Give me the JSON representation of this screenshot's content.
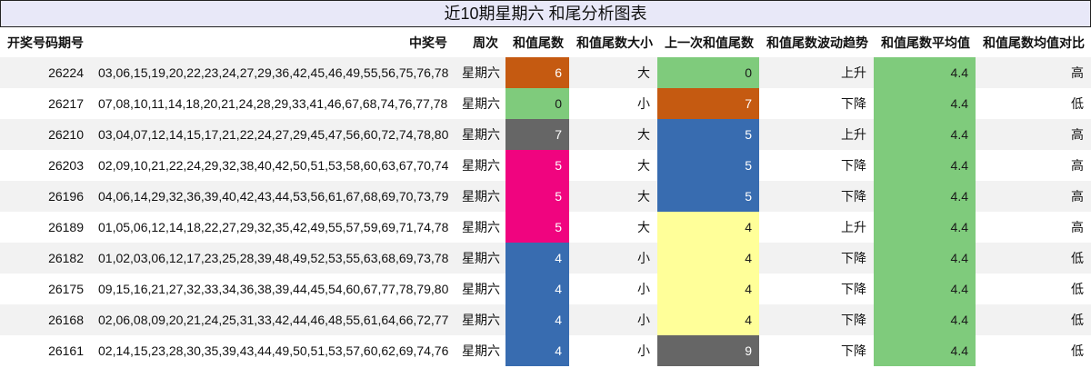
{
  "title": "近10期星期六 和尾分析图表",
  "headers": [
    "开奖号码期号",
    "中奖号",
    "周次",
    "和值尾数",
    "和值尾数大小",
    "上一次和值尾数",
    "和值尾数波动趋势",
    "和值尾数平均值",
    "和值尾数均值对比"
  ],
  "colors": {
    "orange": "#c55a11",
    "green": "#7fcb7c",
    "gray": "#666666",
    "magenta": "#f0047f",
    "blue": "#386cb0",
    "yellow": "#ffff99"
  },
  "rows": [
    {
      "issue": "26224",
      "numbers": "03,06,15,19,20,22,23,24,27,29,36,42,45,46,49,55,56,75,76,78",
      "weekday": "星期六",
      "tail": "6",
      "tail_color": "orange",
      "size": "大",
      "prev": "0",
      "prev_color": "green",
      "trend": "上升",
      "avg": "4.4",
      "compare": "高"
    },
    {
      "issue": "26217",
      "numbers": "07,08,10,11,14,18,20,21,24,28,29,33,41,46,67,68,74,76,77,78",
      "weekday": "星期六",
      "tail": "0",
      "tail_color": "green",
      "size": "小",
      "prev": "7",
      "prev_color": "orange",
      "trend": "下降",
      "avg": "4.4",
      "compare": "低"
    },
    {
      "issue": "26210",
      "numbers": "03,04,07,12,14,15,17,21,22,24,27,29,45,47,56,60,72,74,78,80",
      "weekday": "星期六",
      "tail": "7",
      "tail_color": "gray",
      "size": "大",
      "prev": "5",
      "prev_color": "blue",
      "trend": "上升",
      "avg": "4.4",
      "compare": "高"
    },
    {
      "issue": "26203",
      "numbers": "02,09,10,21,22,24,29,32,38,40,42,50,51,53,58,60,63,67,70,74",
      "weekday": "星期六",
      "tail": "5",
      "tail_color": "magenta",
      "size": "大",
      "prev": "5",
      "prev_color": "blue",
      "trend": "下降",
      "avg": "4.4",
      "compare": "高"
    },
    {
      "issue": "26196",
      "numbers": "04,06,14,29,32,36,39,40,42,43,44,53,56,61,67,68,69,70,73,79",
      "weekday": "星期六",
      "tail": "5",
      "tail_color": "magenta",
      "size": "大",
      "prev": "5",
      "prev_color": "blue",
      "trend": "下降",
      "avg": "4.4",
      "compare": "高"
    },
    {
      "issue": "26189",
      "numbers": "01,05,06,12,14,18,22,27,29,32,35,42,49,55,57,59,69,71,74,78",
      "weekday": "星期六",
      "tail": "5",
      "tail_color": "magenta",
      "size": "大",
      "prev": "4",
      "prev_color": "yellow",
      "trend": "上升",
      "avg": "4.4",
      "compare": "高"
    },
    {
      "issue": "26182",
      "numbers": "01,02,03,06,12,17,23,25,28,39,48,49,52,53,55,63,68,69,73,78",
      "weekday": "星期六",
      "tail": "4",
      "tail_color": "blue",
      "size": "小",
      "prev": "4",
      "prev_color": "yellow",
      "trend": "下降",
      "avg": "4.4",
      "compare": "低"
    },
    {
      "issue": "26175",
      "numbers": "09,15,16,21,27,32,33,34,36,38,39,44,45,54,60,67,77,78,79,80",
      "weekday": "星期六",
      "tail": "4",
      "tail_color": "blue",
      "size": "小",
      "prev": "4",
      "prev_color": "yellow",
      "trend": "下降",
      "avg": "4.4",
      "compare": "低"
    },
    {
      "issue": "26168",
      "numbers": "02,06,08,09,20,21,24,25,31,33,42,44,46,48,55,61,64,66,72,77",
      "weekday": "星期六",
      "tail": "4",
      "tail_color": "blue",
      "size": "小",
      "prev": "4",
      "prev_color": "yellow",
      "trend": "下降",
      "avg": "4.4",
      "compare": "低"
    },
    {
      "issue": "26161",
      "numbers": "02,14,15,23,28,30,35,39,43,44,49,50,51,53,57,60,62,69,74,76",
      "weekday": "星期六",
      "tail": "4",
      "tail_color": "blue",
      "size": "小",
      "prev": "9",
      "prev_color": "gray",
      "trend": "下降",
      "avg": "4.4",
      "compare": "低"
    }
  ]
}
